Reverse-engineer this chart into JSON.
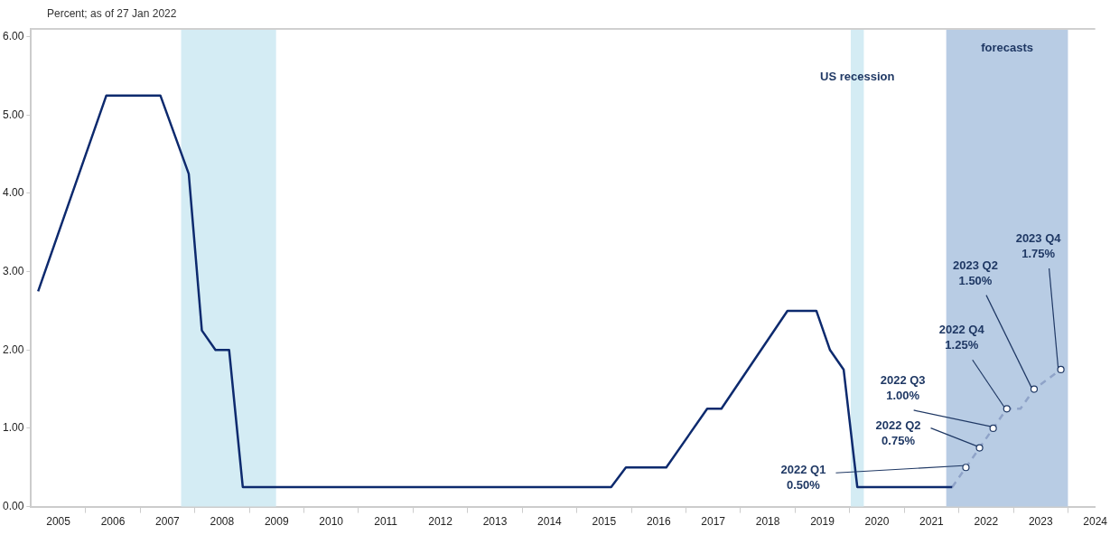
{
  "chart_data": {
    "type": "line",
    "ylabel": "Percent; as of 27 Jan 2022",
    "xlim": [
      2005,
      2024.5
    ],
    "xticks": [
      {
        "value": 2005.5,
        "label": "2005"
      },
      {
        "value": 2006,
        "label": null
      },
      {
        "value": 2006.5,
        "label": "2006"
      },
      {
        "value": 2007,
        "label": null
      },
      {
        "value": 2007.5,
        "label": "2007"
      },
      {
        "value": 2008,
        "label": null
      },
      {
        "value": 2008.5,
        "label": "2008"
      },
      {
        "value": 2009,
        "label": null
      },
      {
        "value": 2009.5,
        "label": "2009"
      },
      {
        "value": 2010,
        "label": null
      },
      {
        "value": 2010.5,
        "label": "2010"
      },
      {
        "value": 2011,
        "label": null
      },
      {
        "value": 2011.5,
        "label": "2011"
      },
      {
        "value": 2012,
        "label": null
      },
      {
        "value": 2012.5,
        "label": "2012"
      },
      {
        "value": 2013,
        "label": null
      },
      {
        "value": 2013.5,
        "label": "2013"
      },
      {
        "value": 2014,
        "label": null
      },
      {
        "value": 2014.5,
        "label": "2014"
      },
      {
        "value": 2015,
        "label": null
      },
      {
        "value": 2015.5,
        "label": "2015"
      },
      {
        "value": 2016,
        "label": null
      },
      {
        "value": 2016.5,
        "label": "2016"
      },
      {
        "value": 2017,
        "label": null
      },
      {
        "value": 2017.5,
        "label": "2017"
      },
      {
        "value": 2018,
        "label": null
      },
      {
        "value": 2018.5,
        "label": "2018"
      },
      {
        "value": 2019,
        "label": null
      },
      {
        "value": 2019.5,
        "label": "2019"
      },
      {
        "value": 2020,
        "label": null
      },
      {
        "value": 2020.5,
        "label": "2020"
      },
      {
        "value": 2021,
        "label": null
      },
      {
        "value": 2021.5,
        "label": "2021"
      },
      {
        "value": 2022,
        "label": null
      },
      {
        "value": 2022.5,
        "label": "2022"
      },
      {
        "value": 2023,
        "label": null
      },
      {
        "value": 2023.5,
        "label": "2023"
      },
      {
        "value": 2024,
        "label": null
      },
      {
        "value": 2024.5,
        "label": "2024"
      }
    ],
    "ylim": [
      0,
      6.1
    ],
    "yticks": [
      {
        "value": 0,
        "label": "0.00"
      },
      {
        "value": 1,
        "label": "1.00"
      },
      {
        "value": 2,
        "label": "2.00"
      },
      {
        "value": 3,
        "label": "3.00"
      },
      {
        "value": 4,
        "label": "4.00"
      },
      {
        "value": 5,
        "label": "5.00"
      },
      {
        "value": 6,
        "label": "6.00"
      }
    ],
    "grid": false,
    "legend": false,
    "series": [
      {
        "color": "#0d2a6e",
        "line_style": "solid",
        "marker": "none",
        "x": [
          2005.13,
          2006.38,
          2007.37,
          2007.89,
          2008.13,
          2008.38,
          2008.63,
          2008.88,
          2015.63,
          2015.9,
          2016.64,
          2017.39,
          2017.65,
          2018.86,
          2019.39,
          2019.64,
          2019.89,
          2020.14,
          2021.88
        ],
        "values": [
          2.75,
          5.25,
          5.25,
          4.25,
          2.25,
          2.0,
          2.0,
          0.25,
          0.25,
          0.5,
          0.5,
          1.25,
          1.25,
          2.5,
          2.5,
          2.0,
          1.75,
          0.25,
          0.25
        ]
      },
      {
        "color": "#8fa3c8",
        "line_style": "dashed",
        "marker": "circle",
        "x": [
          2021.88,
          2022.13,
          2022.38,
          2022.63,
          2022.88,
          2023.13,
          2023.38,
          2023.87
        ],
        "values": [
          0.25,
          0.5,
          0.75,
          1.0,
          1.25,
          1.25,
          1.5,
          1.75
        ]
      }
    ],
    "bands": [
      {
        "axis": "x",
        "from": 2007.75,
        "to": 2009.49,
        "color": "#d4ecf4"
      },
      {
        "axis": "x",
        "from": 2020.02,
        "to": 2020.26,
        "label": "US recession",
        "color": "#d4ecf4"
      },
      {
        "axis": "x",
        "from": 2021.77,
        "to": 2024.0,
        "label": "forecasts",
        "color": "#b8cce4"
      }
    ],
    "annotations": [
      {
        "text": "2022 Q1\n0.50%",
        "x": 2022.13,
        "y": 0.5
      },
      {
        "text": "2022 Q2\n0.75%",
        "x": 2022.38,
        "y": 0.75
      },
      {
        "text": "2022 Q3\n1.00%",
        "x": 2022.63,
        "y": 1.0
      },
      {
        "text": "2022 Q4\n1.25%",
        "x": 2022.88,
        "y": 1.25
      },
      {
        "text": "2023 Q2\n1.50%",
        "x": 2023.38,
        "y": 1.5
      },
      {
        "text": "2023 Q4\n1.75%",
        "x": 2023.87,
        "y": 1.75
      }
    ]
  }
}
